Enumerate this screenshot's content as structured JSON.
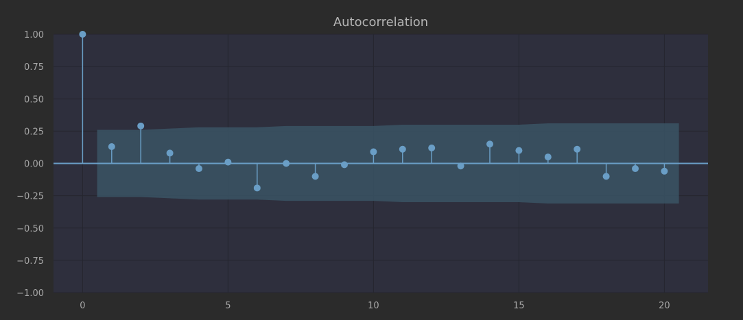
{
  "chart_data": {
    "type": "stem",
    "title": "Autocorrelation",
    "xlabel": "",
    "ylabel": "",
    "xlim": [
      -1,
      21.5
    ],
    "ylim": [
      -1.0,
      1.0
    ],
    "x_ticks": [
      0,
      5,
      10,
      15,
      20
    ],
    "y_ticks": [
      1.0,
      0.75,
      0.5,
      0.25,
      0.0,
      -0.25,
      -0.5,
      -0.75,
      -1.0
    ],
    "y_tick_labels": [
      "1.00",
      "0.75",
      "0.50",
      "0.25",
      "0.00",
      "−0.25",
      "−0.50",
      "−0.75",
      "−1.00"
    ],
    "grid": true,
    "lags": [
      0,
      1,
      2,
      3,
      4,
      5,
      6,
      7,
      8,
      9,
      10,
      11,
      12,
      13,
      14,
      15,
      16,
      17,
      18,
      19,
      20
    ],
    "values": [
      1.0,
      0.13,
      0.29,
      0.08,
      -0.04,
      0.01,
      -0.19,
      0.0,
      -0.1,
      -0.01,
      0.09,
      0.11,
      0.12,
      -0.02,
      0.15,
      0.1,
      0.05,
      0.11,
      -0.1,
      -0.04,
      -0.06
    ],
    "confidence_band": {
      "lags": [
        0.5,
        1,
        2,
        3,
        4,
        5,
        6,
        7,
        8,
        9,
        10,
        11,
        12,
        13,
        14,
        15,
        16,
        17,
        18,
        19,
        20,
        20.5
      ],
      "upper": [
        0.26,
        0.26,
        0.26,
        0.27,
        0.28,
        0.28,
        0.28,
        0.29,
        0.29,
        0.29,
        0.29,
        0.3,
        0.3,
        0.3,
        0.3,
        0.3,
        0.31,
        0.31,
        0.31,
        0.31,
        0.31,
        0.31
      ]
    },
    "colors": {
      "background": "#2b2b2b",
      "plot_area": "#2e2f3d",
      "grid": "#25262f",
      "stem": "#6a9ec6",
      "band": "#3a5464",
      "zero_line": "#6a9ec6"
    }
  }
}
